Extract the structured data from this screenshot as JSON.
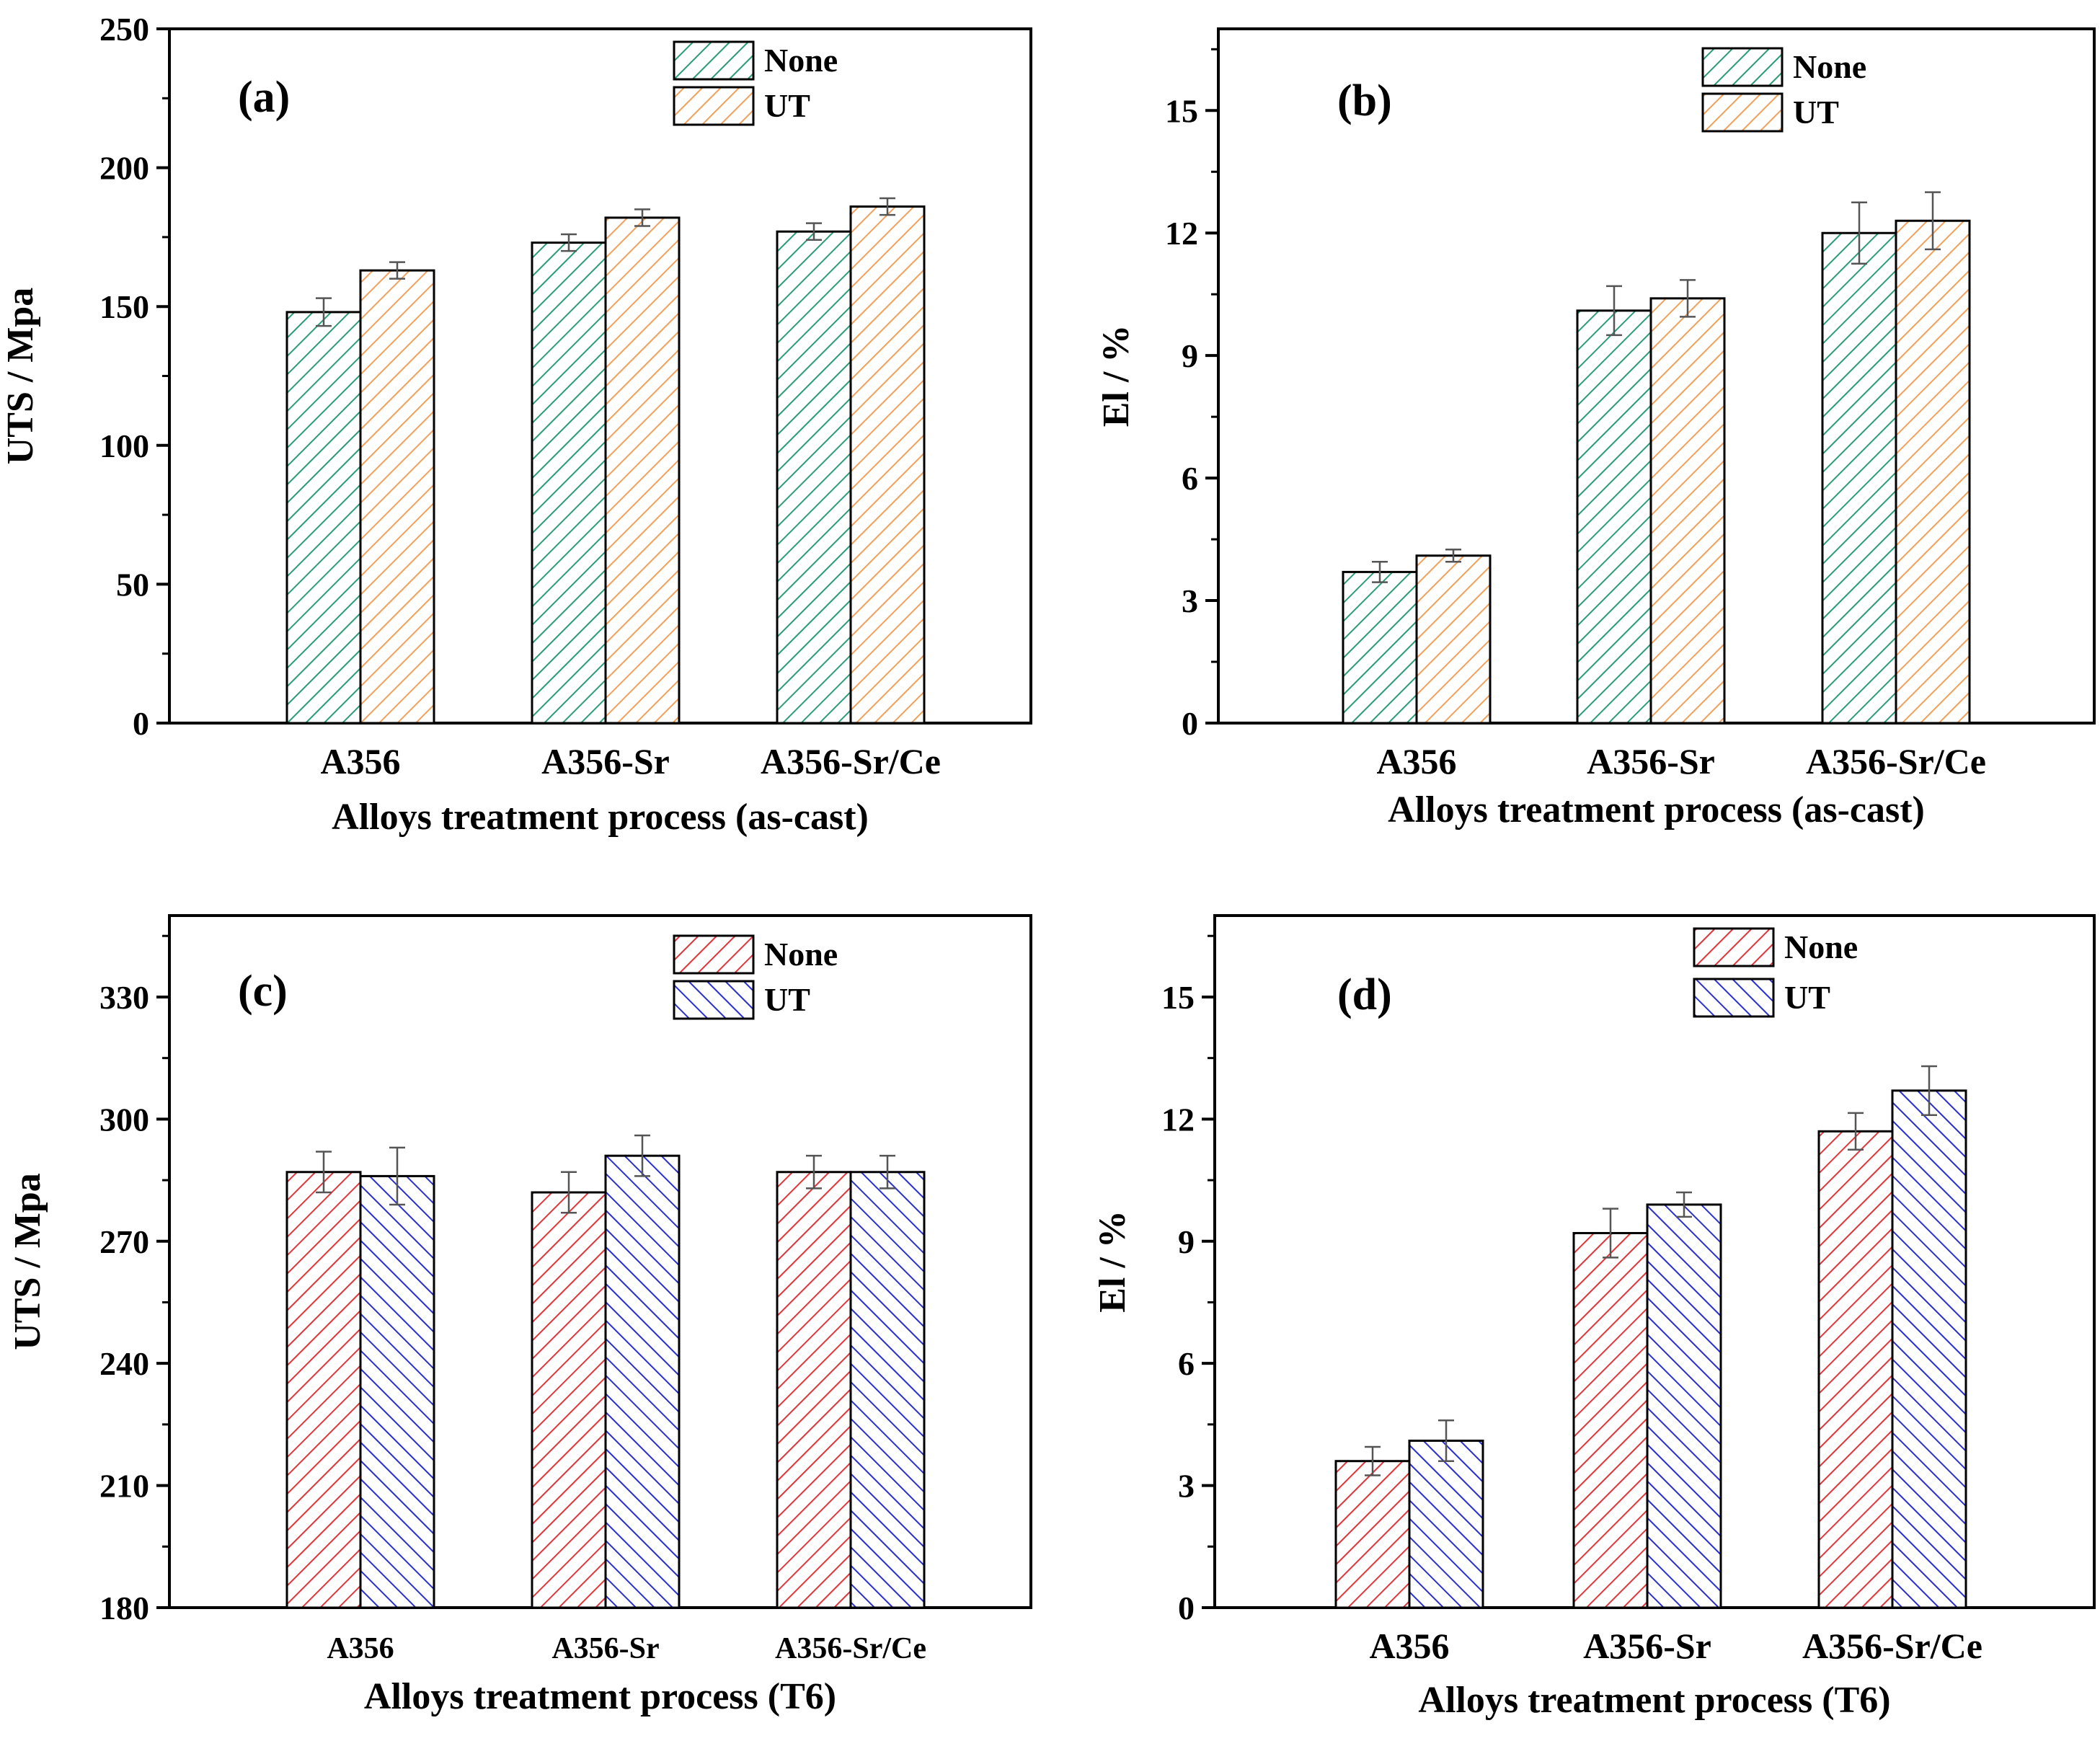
{
  "colors": {
    "none_ascast": "#2a9d78",
    "ut_ascast": "#f2a15c",
    "none_t6": "#e0363b",
    "ut_t6": "#2a2fcf",
    "axis": "#000000",
    "errorbar": "#555555"
  },
  "chart_data": [
    {
      "type": "bar",
      "panel_label": "(a)",
      "categories": [
        "A356",
        "A356-Sr",
        "A356-Sr/Ce"
      ],
      "xlabel": "Alloys treatment process (as-cast)",
      "ylabel": "UTS / Mpa",
      "ylim": [
        0,
        250
      ],
      "yticks": [
        0,
        50,
        100,
        150,
        200,
        250
      ],
      "ytick_labels": [
        "0",
        "50",
        "100",
        "150",
        "200",
        "250"
      ],
      "legend_position": "top-right",
      "series": [
        {
          "name": "None",
          "values": [
            148,
            173,
            177
          ],
          "errors": [
            5,
            3,
            3
          ]
        },
        {
          "name": "UT",
          "values": [
            163,
            182,
            186
          ],
          "errors": [
            3,
            3,
            3
          ]
        }
      ]
    },
    {
      "type": "bar",
      "panel_label": "(b)",
      "categories": [
        "A356",
        "A356-Sr",
        "A356-Sr/Ce"
      ],
      "xlabel": "Alloys treatment process (as-cast)",
      "ylabel": "El / %",
      "ylim": [
        0,
        17
      ],
      "yticks": [
        0,
        3,
        6,
        9,
        12,
        15
      ],
      "ytick_labels": [
        "0",
        "3",
        "6",
        "9",
        "12",
        "15"
      ],
      "legend_position": "top-right",
      "series": [
        {
          "name": "None",
          "values": [
            3.7,
            10.1,
            12.0
          ],
          "errors": [
            0.25,
            0.6,
            0.75
          ]
        },
        {
          "name": "UT",
          "values": [
            4.1,
            10.4,
            12.3
          ],
          "errors": [
            0.15,
            0.45,
            0.7
          ]
        }
      ]
    },
    {
      "type": "bar",
      "panel_label": "(c)",
      "categories": [
        "A356",
        "A356-Sr",
        "A356-Sr/Ce"
      ],
      "xlabel": "Alloys treatment process (T6)",
      "ylabel": "UTS / Mpa",
      "ylim": [
        180,
        350
      ],
      "yticks": [
        180,
        210,
        240,
        270,
        300,
        330
      ],
      "ytick_labels": [
        "180",
        "210",
        "240",
        "270",
        "300",
        "330"
      ],
      "legend_position": "top-right",
      "series": [
        {
          "name": "None",
          "values": [
            287,
            282,
            287
          ],
          "errors": [
            5,
            5,
            4
          ]
        },
        {
          "name": "UT",
          "values": [
            286,
            291,
            287
          ],
          "errors": [
            7,
            5,
            4
          ]
        }
      ]
    },
    {
      "type": "bar",
      "panel_label": "(d)",
      "categories": [
        "A356",
        "A356-Sr",
        "A356-Sr/Ce"
      ],
      "xlabel": "Alloys treatment process (T6)",
      "ylabel": "El / %",
      "ylim": [
        0,
        17
      ],
      "yticks": [
        0,
        3,
        6,
        9,
        12,
        15
      ],
      "ytick_labels": [
        "0",
        "3",
        "6",
        "9",
        "12",
        "15"
      ],
      "legend_position": "top-right",
      "series": [
        {
          "name": "None",
          "values": [
            3.6,
            9.2,
            11.7
          ],
          "errors": [
            0.35,
            0.6,
            0.45
          ]
        },
        {
          "name": "UT",
          "values": [
            4.1,
            9.9,
            12.7
          ],
          "errors": [
            0.5,
            0.3,
            0.6
          ]
        }
      ]
    }
  ]
}
